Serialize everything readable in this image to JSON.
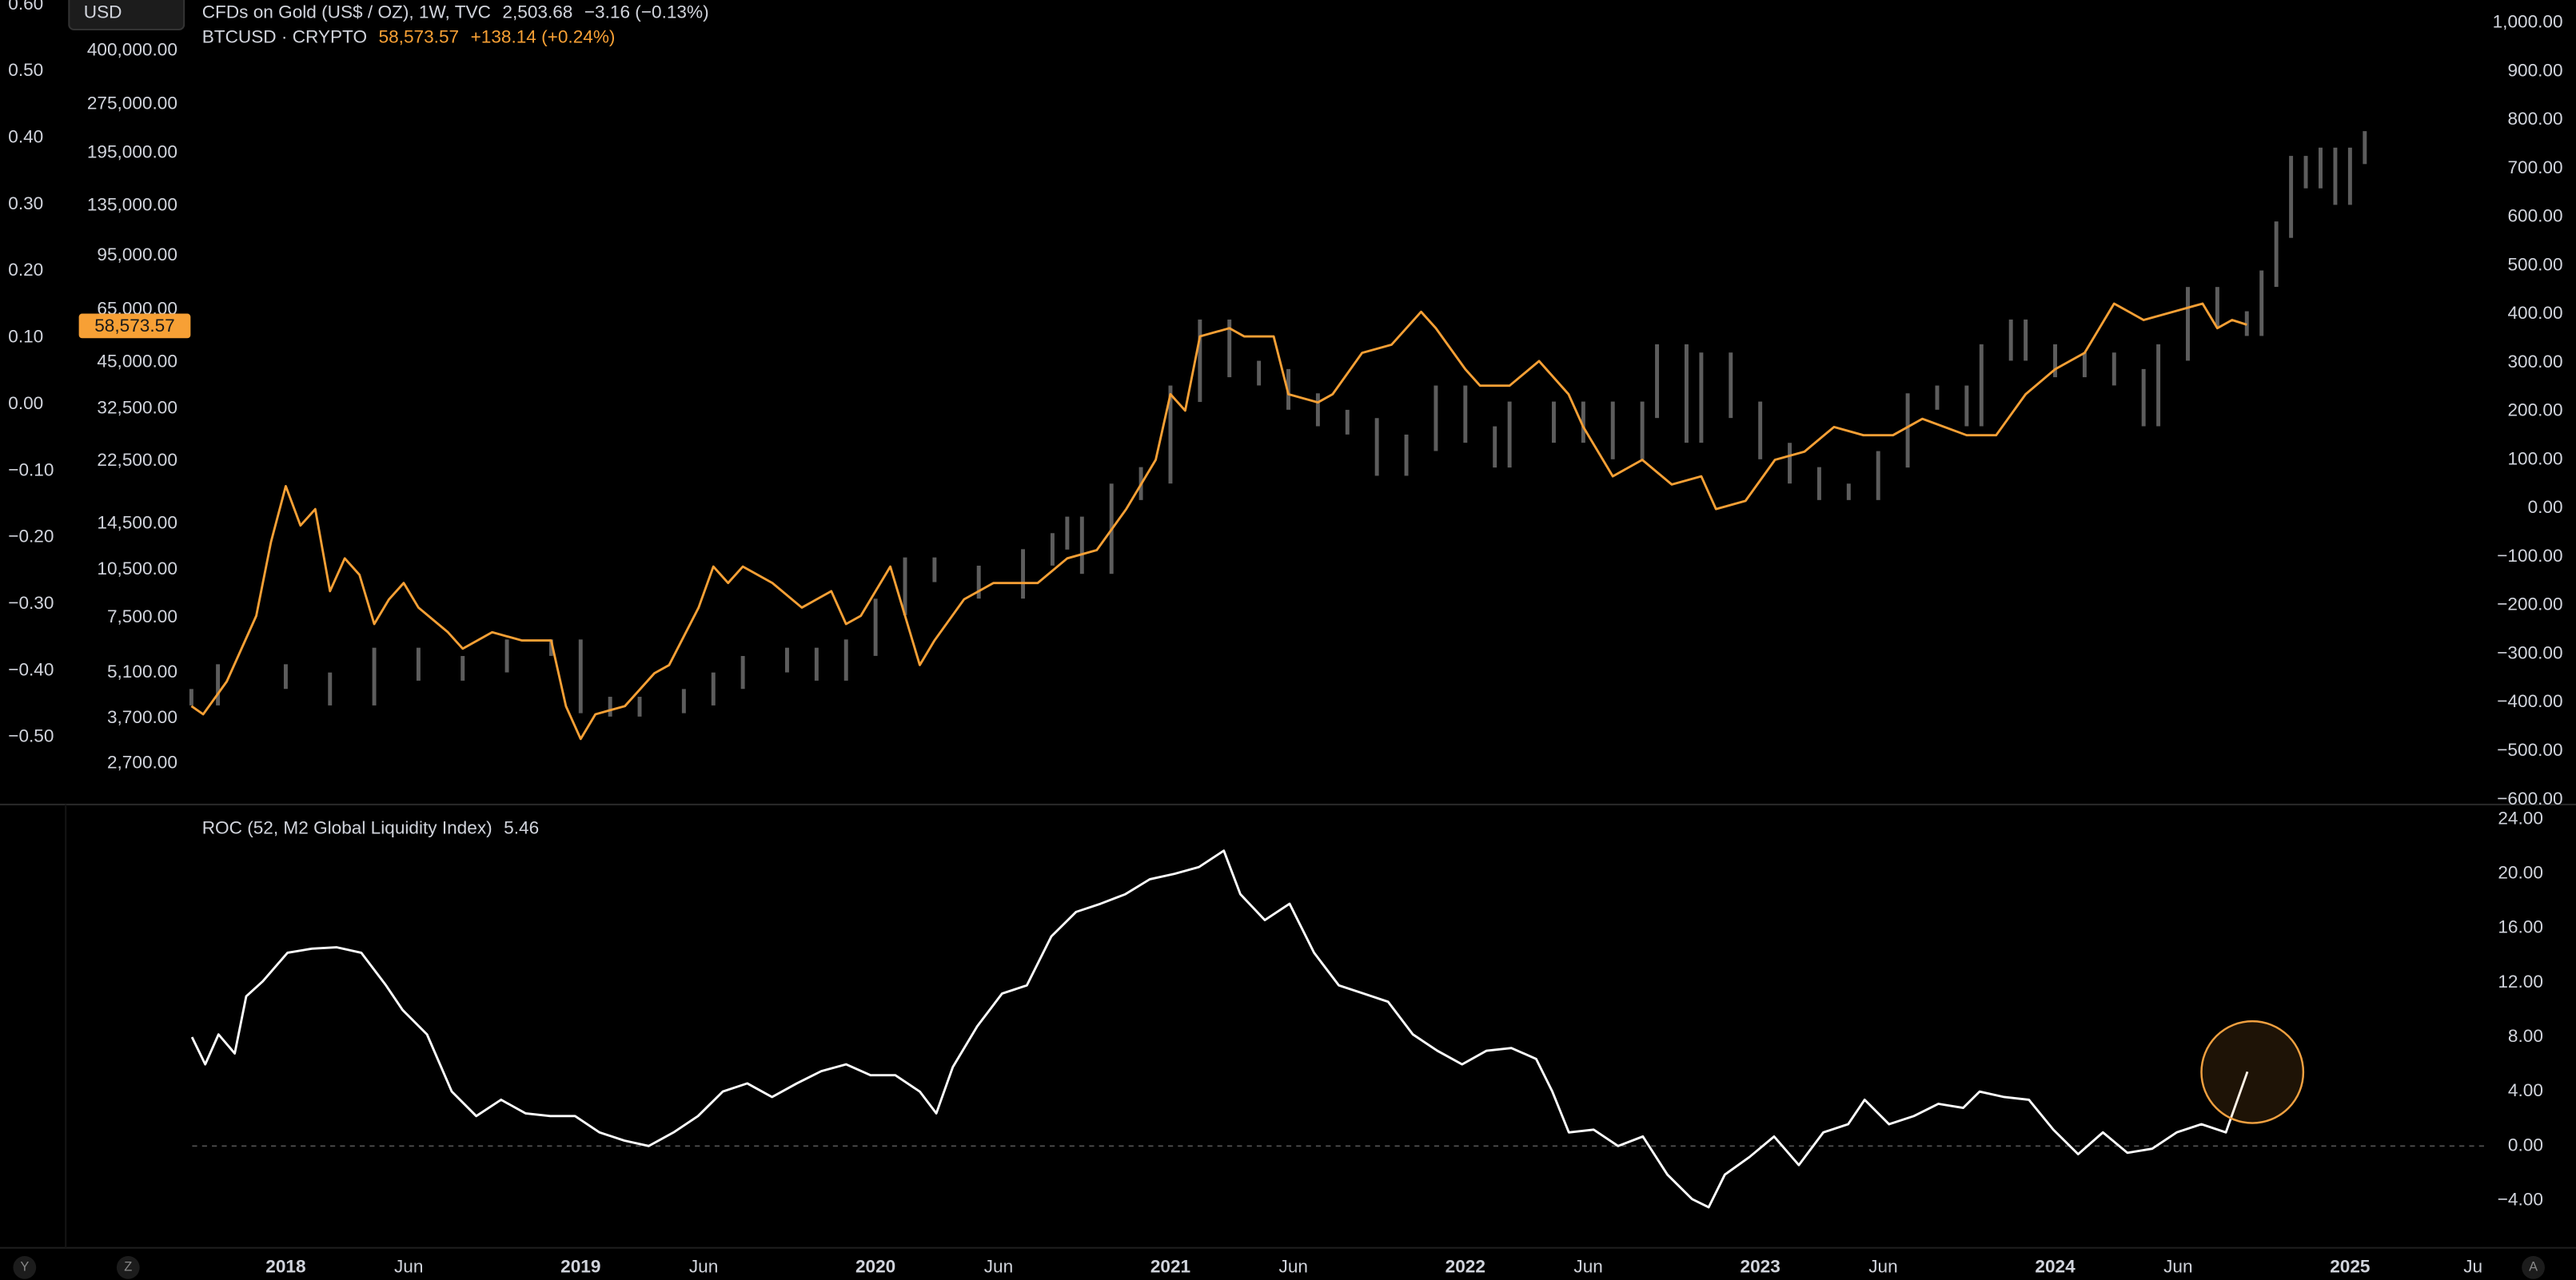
{
  "ui": {
    "currency_button": "USD",
    "corner_left_1": "Y",
    "corner_left_2": "Z",
    "corner_right": "A"
  },
  "chart_data": [
    {
      "type": "line",
      "xlim": [
        2017.031,
        2025.471
      ],
      "ylim": [
        -0.601,
        0.607
      ],
      "yticks": [
        {
          "value": 0.6,
          "label": "0.60"
        },
        {
          "value": 0.5,
          "label": "0.50"
        },
        {
          "value": 0.4,
          "label": "0.40"
        },
        {
          "value": 0.3,
          "label": "0.30"
        },
        {
          "value": 0.2,
          "label": "0.20"
        },
        {
          "value": 0.1,
          "label": "0.10"
        },
        {
          "value": 0,
          "label": "0.00"
        },
        {
          "value": -0.1,
          "label": "−0.10"
        },
        {
          "value": -0.2,
          "label": "−0.20"
        },
        {
          "value": -0.3,
          "label": "−0.30"
        },
        {
          "value": -0.4,
          "label": "−0.40"
        },
        {
          "value": -0.5,
          "label": "−0.50"
        }
      ],
      "y2lim": [
        -610,
        1047
      ],
      "y2ticks": [
        {
          "value": 1000,
          "label": "1,000.00"
        },
        {
          "value": 900,
          "label": "900.00"
        },
        {
          "value": 800,
          "label": "800.00"
        },
        {
          "value": 700,
          "label": "700.00"
        },
        {
          "value": 600,
          "label": "600.00"
        },
        {
          "value": 500,
          "label": "500.00"
        },
        {
          "value": 400,
          "label": "400.00"
        },
        {
          "value": 300,
          "label": "300.00"
        },
        {
          "value": 200,
          "label": "200.00"
        },
        {
          "value": 100,
          "label": "100.00"
        },
        {
          "value": 0,
          "label": "0.00"
        },
        {
          "value": -100,
          "label": "−100.00"
        },
        {
          "value": -200,
          "label": "−200.00"
        },
        {
          "value": -300,
          "label": "−300.00"
        },
        {
          "value": -400,
          "label": "−400.00"
        },
        {
          "value": -500,
          "label": "−500.00"
        },
        {
          "value": -600,
          "label": "−600.00"
        }
      ],
      "y3lim": [
        2024,
        571000
      ],
      "y3log": true,
      "y3ticks": [
        {
          "value": 400000,
          "label": "400,000.00"
        },
        {
          "value": 275000,
          "label": "275,000.00"
        },
        {
          "value": 195000,
          "label": "195,000.00"
        },
        {
          "value": 135000,
          "label": "135,000.00"
        },
        {
          "value": 95000,
          "label": "95,000.00"
        },
        {
          "value": 65000,
          "label": "65,000.00"
        },
        {
          "value": 45000,
          "label": "45,000.00"
        },
        {
          "value": 32500,
          "label": "32,500.00"
        },
        {
          "value": 22500,
          "label": "22,500.00"
        },
        {
          "value": 14500,
          "label": "14,500.00"
        },
        {
          "value": 10500,
          "label": "10,500.00"
        },
        {
          "value": 7500,
          "label": "7,500.00"
        },
        {
          "value": 5100,
          "label": "5,100.00"
        },
        {
          "value": 3700,
          "label": "3,700.00"
        },
        {
          "value": 2700,
          "label": "2,700.00"
        }
      ],
      "grid": false,
      "series": [
        {
          "name": "CFDs on Gold (US$ / OZ), 1W, TVC",
          "last_label": "2,503.68",
          "change_label": "−3.16 (−0.13%)",
          "style": "bars",
          "axis": "y2",
          "color": "#5d5d5d",
          "x": [
            2017.68,
            2017.77,
            2018.0,
            2018.15,
            2018.3,
            2018.45,
            2018.6,
            2018.75,
            2018.9,
            2019.0,
            2019.1,
            2019.2,
            2019.35,
            2019.45,
            2019.55,
            2019.7,
            2019.8,
            2019.9,
            2020.0,
            2020.1,
            2020.2,
            2020.35,
            2020.5,
            2020.6,
            2020.65,
            2020.7,
            2020.8,
            2020.9,
            2021.0,
            2021.1,
            2021.2,
            2021.3,
            2021.4,
            2021.5,
            2021.6,
            2021.7,
            2021.8,
            2021.9,
            2022.0,
            2022.1,
            2022.15,
            2022.3,
            2022.4,
            2022.5,
            2022.6,
            2022.65,
            2022.75,
            2022.8,
            2022.9,
            2023.0,
            2023.1,
            2023.2,
            2023.3,
            2023.4,
            2023.5,
            2023.6,
            2023.7,
            2023.75,
            2023.85,
            2023.9,
            2024.0,
            2024.1,
            2024.2,
            2024.3,
            2024.35,
            2024.45,
            2024.55,
            2024.65,
            2024.7,
            2024.75,
            2024.8,
            2024.85,
            2024.9,
            2024.95,
            2025.0,
            2025.05
          ],
          "values": [
            -389,
            -338,
            -355,
            -389,
            -304,
            -338,
            -321,
            -287,
            -287,
            -405,
            -412,
            -405,
            -389,
            -355,
            -321,
            -304,
            -338,
            -287,
            -203,
            -118,
            -135,
            -169,
            -101,
            -68,
            -34,
            -118,
            34,
            68,
            236,
            372,
            287,
            270,
            220,
            186,
            169,
            84,
            135,
            236,
            152,
            101,
            203,
            152,
            203,
            118,
            203,
            321,
            152,
            304,
            203,
            118,
            68,
            34,
            34,
            101,
            220,
            236,
            186,
            321,
            372,
            321,
            287,
            304,
            270,
            186,
            321,
            439,
            389,
            372,
            473,
            574,
            709,
            676,
            726,
            642,
            726,
            760
          ]
        },
        {
          "name": "BTCUSD · CRYPTO",
          "last_label": "58,573.57",
          "change_label": "+138.14 (+0.24%)",
          "style": "line",
          "axis": "y3",
          "color": "#f7a035",
          "x": [
            2017.68,
            2017.72,
            2017.8,
            2017.9,
            2017.95,
            2018.0,
            2018.05,
            2018.1,
            2018.15,
            2018.2,
            2018.25,
            2018.3,
            2018.35,
            2018.4,
            2018.45,
            2018.55,
            2018.6,
            2018.7,
            2018.8,
            2018.9,
            2018.95,
            2019.0,
            2019.05,
            2019.15,
            2019.25,
            2019.3,
            2019.4,
            2019.45,
            2019.5,
            2019.55,
            2019.65,
            2019.75,
            2019.85,
            2019.9,
            2019.95,
            2020.05,
            2020.15,
            2020.2,
            2020.3,
            2020.4,
            2020.55,
            2020.65,
            2020.75,
            2020.85,
            2020.95,
            2021.0,
            2021.05,
            2021.1,
            2021.2,
            2021.25,
            2021.35,
            2021.4,
            2021.5,
            2021.55,
            2021.65,
            2021.75,
            2021.85,
            2021.9,
            2022.0,
            2022.05,
            2022.15,
            2022.25,
            2022.35,
            2022.4,
            2022.5,
            2022.6,
            2022.7,
            2022.8,
            2022.85,
            2022.95,
            2023.05,
            2023.15,
            2023.25,
            2023.35,
            2023.45,
            2023.55,
            2023.7,
            2023.8,
            2023.9,
            2024.0,
            2024.1,
            2024.2,
            2024.3,
            2024.4,
            2024.5,
            2024.55,
            2024.6,
            2024.65
          ],
          "values": [
            4036,
            3811,
            4798,
            7603,
            12764,
            18880,
            14322,
            16070,
            9036,
            11376,
            10139,
            7178,
            8531,
            9572,
            8054,
            6776,
            6039,
            6776,
            6397,
            6397,
            4036,
            3206,
            3811,
            4036,
            5082,
            5383,
            8054,
            10740,
            9572,
            10740,
            9572,
            8054,
            9036,
            7178,
            7603,
            10740,
            5383,
            6397,
            8531,
            9572,
            9572,
            11376,
            12050,
            16070,
            22700,
            35975,
            32063,
            53950,
            57150,
            53950,
            53950,
            35975,
            33960,
            35975,
            48080,
            50930,
            64120,
            57150,
            42850,
            38190,
            38190,
            45390,
            35975,
            28580,
            20230,
            22700,
            19100,
            20230,
            16070,
            17022,
            22700,
            24040,
            28580,
            26980,
            26980,
            30270,
            26980,
            26980,
            35975,
            42850,
            48080,
            67920,
            60530,
            64120,
            67920,
            57150,
            60530,
            58573.57
          ]
        }
      ]
    },
    {
      "type": "line",
      "title": "ROC (52, M2 Global Liquidity Index)",
      "last_label": "5.46",
      "xlim": [
        2017.031,
        2025.471
      ],
      "xticks": [
        {
          "value": 2018,
          "label": "2018"
        },
        {
          "value": 2018.417,
          "label": "Jun"
        },
        {
          "value": 2019,
          "label": "2019"
        },
        {
          "value": 2019.417,
          "label": "Jun"
        },
        {
          "value": 2020,
          "label": "2020"
        },
        {
          "value": 2020.417,
          "label": "Jun"
        },
        {
          "value": 2021,
          "label": "2021"
        },
        {
          "value": 2021.417,
          "label": "Jun"
        },
        {
          "value": 2022,
          "label": "2022"
        },
        {
          "value": 2022.417,
          "label": "Jun"
        },
        {
          "value": 2023,
          "label": "2023"
        },
        {
          "value": 2023.417,
          "label": "Jun"
        },
        {
          "value": 2024,
          "label": "2024"
        },
        {
          "value": 2024.417,
          "label": "Jun"
        },
        {
          "value": 2025,
          "label": "2025"
        },
        {
          "value": 2025.417,
          "label": "Ju"
        }
      ],
      "ylim": [
        -7.48,
        25.09
      ],
      "yticks": [
        {
          "value": 24,
          "label": "24.00"
        },
        {
          "value": 20,
          "label": "20.00"
        },
        {
          "value": 16,
          "label": "16.00"
        },
        {
          "value": 12,
          "label": "12.00"
        },
        {
          "value": 8,
          "label": "8.00"
        },
        {
          "value": 4,
          "label": "4.00"
        },
        {
          "value": 0,
          "label": "0.00"
        },
        {
          "value": -4,
          "label": "−4.00"
        }
      ],
      "zero_line": true,
      "grid": false,
      "series": [
        {
          "style": "line",
          "axis": "y",
          "color": "#ffffff",
          "x": [
            2017.682,
            2017.727,
            2017.772,
            2017.827,
            2017.866,
            2017.922,
            2018.006,
            2018.089,
            2018.173,
            2018.256,
            2018.34,
            2018.396,
            2018.479,
            2018.563,
            2018.646,
            2018.73,
            2018.813,
            2018.897,
            2018.981,
            2019.064,
            2019.148,
            2019.231,
            2019.315,
            2019.398,
            2019.482,
            2019.565,
            2019.649,
            2019.733,
            2019.816,
            2019.9,
            2019.983,
            2020.067,
            2020.15,
            2020.206,
            2020.262,
            2020.345,
            2020.429,
            2020.513,
            2020.596,
            2020.68,
            2020.763,
            2020.847,
            2020.93,
            2021.014,
            2021.097,
            2021.181,
            2021.237,
            2021.32,
            2021.404,
            2021.487,
            2021.571,
            2021.655,
            2021.738,
            2021.822,
            2021.905,
            2021.989,
            2022.072,
            2022.156,
            2022.24,
            2022.295,
            2022.351,
            2022.435,
            2022.518,
            2022.602,
            2022.685,
            2022.769,
            2022.825,
            2022.88,
            2022.964,
            2023.047,
            2023.131,
            2023.214,
            2023.298,
            2023.354,
            2023.437,
            2023.521,
            2023.604,
            2023.688,
            2023.744,
            2023.827,
            2023.911,
            2023.994,
            2024.078,
            2024.162,
            2024.245,
            2024.329,
            2024.412,
            2024.496,
            2024.579,
            2024.652
          ],
          "values": [
            8,
            6,
            8.2,
            6.8,
            11,
            12.1,
            14.2,
            14.5,
            14.6,
            14.2,
            11.8,
            10,
            8.2,
            4,
            2.2,
            3.4,
            2.4,
            2.2,
            2.2,
            1,
            0.4,
            0,
            1,
            2.2,
            4,
            4.6,
            3.6,
            4.6,
            5.5,
            6,
            5.2,
            5.2,
            4,
            2.4,
            5.8,
            8.8,
            11.2,
            11.8,
            15.4,
            17.2,
            17.8,
            18.5,
            19.6,
            20,
            20.5,
            21.7,
            18.5,
            16.6,
            17.8,
            14.2,
            11.8,
            11.2,
            10.6,
            8.2,
            7,
            6,
            7,
            7.2,
            6.4,
            4,
            1,
            1.2,
            0,
            0.7,
            -2.1,
            -3.9,
            -4.5,
            -2.1,
            -0.8,
            0.7,
            -1.4,
            1,
            1.6,
            3.4,
            1.6,
            2.2,
            3.1,
            2.8,
            4,
            3.6,
            3.4,
            1.2,
            -0.6,
            1,
            -0.5,
            -0.2,
            1,
            1.6,
            1,
            5.46
          ]
        }
      ]
    }
  ]
}
